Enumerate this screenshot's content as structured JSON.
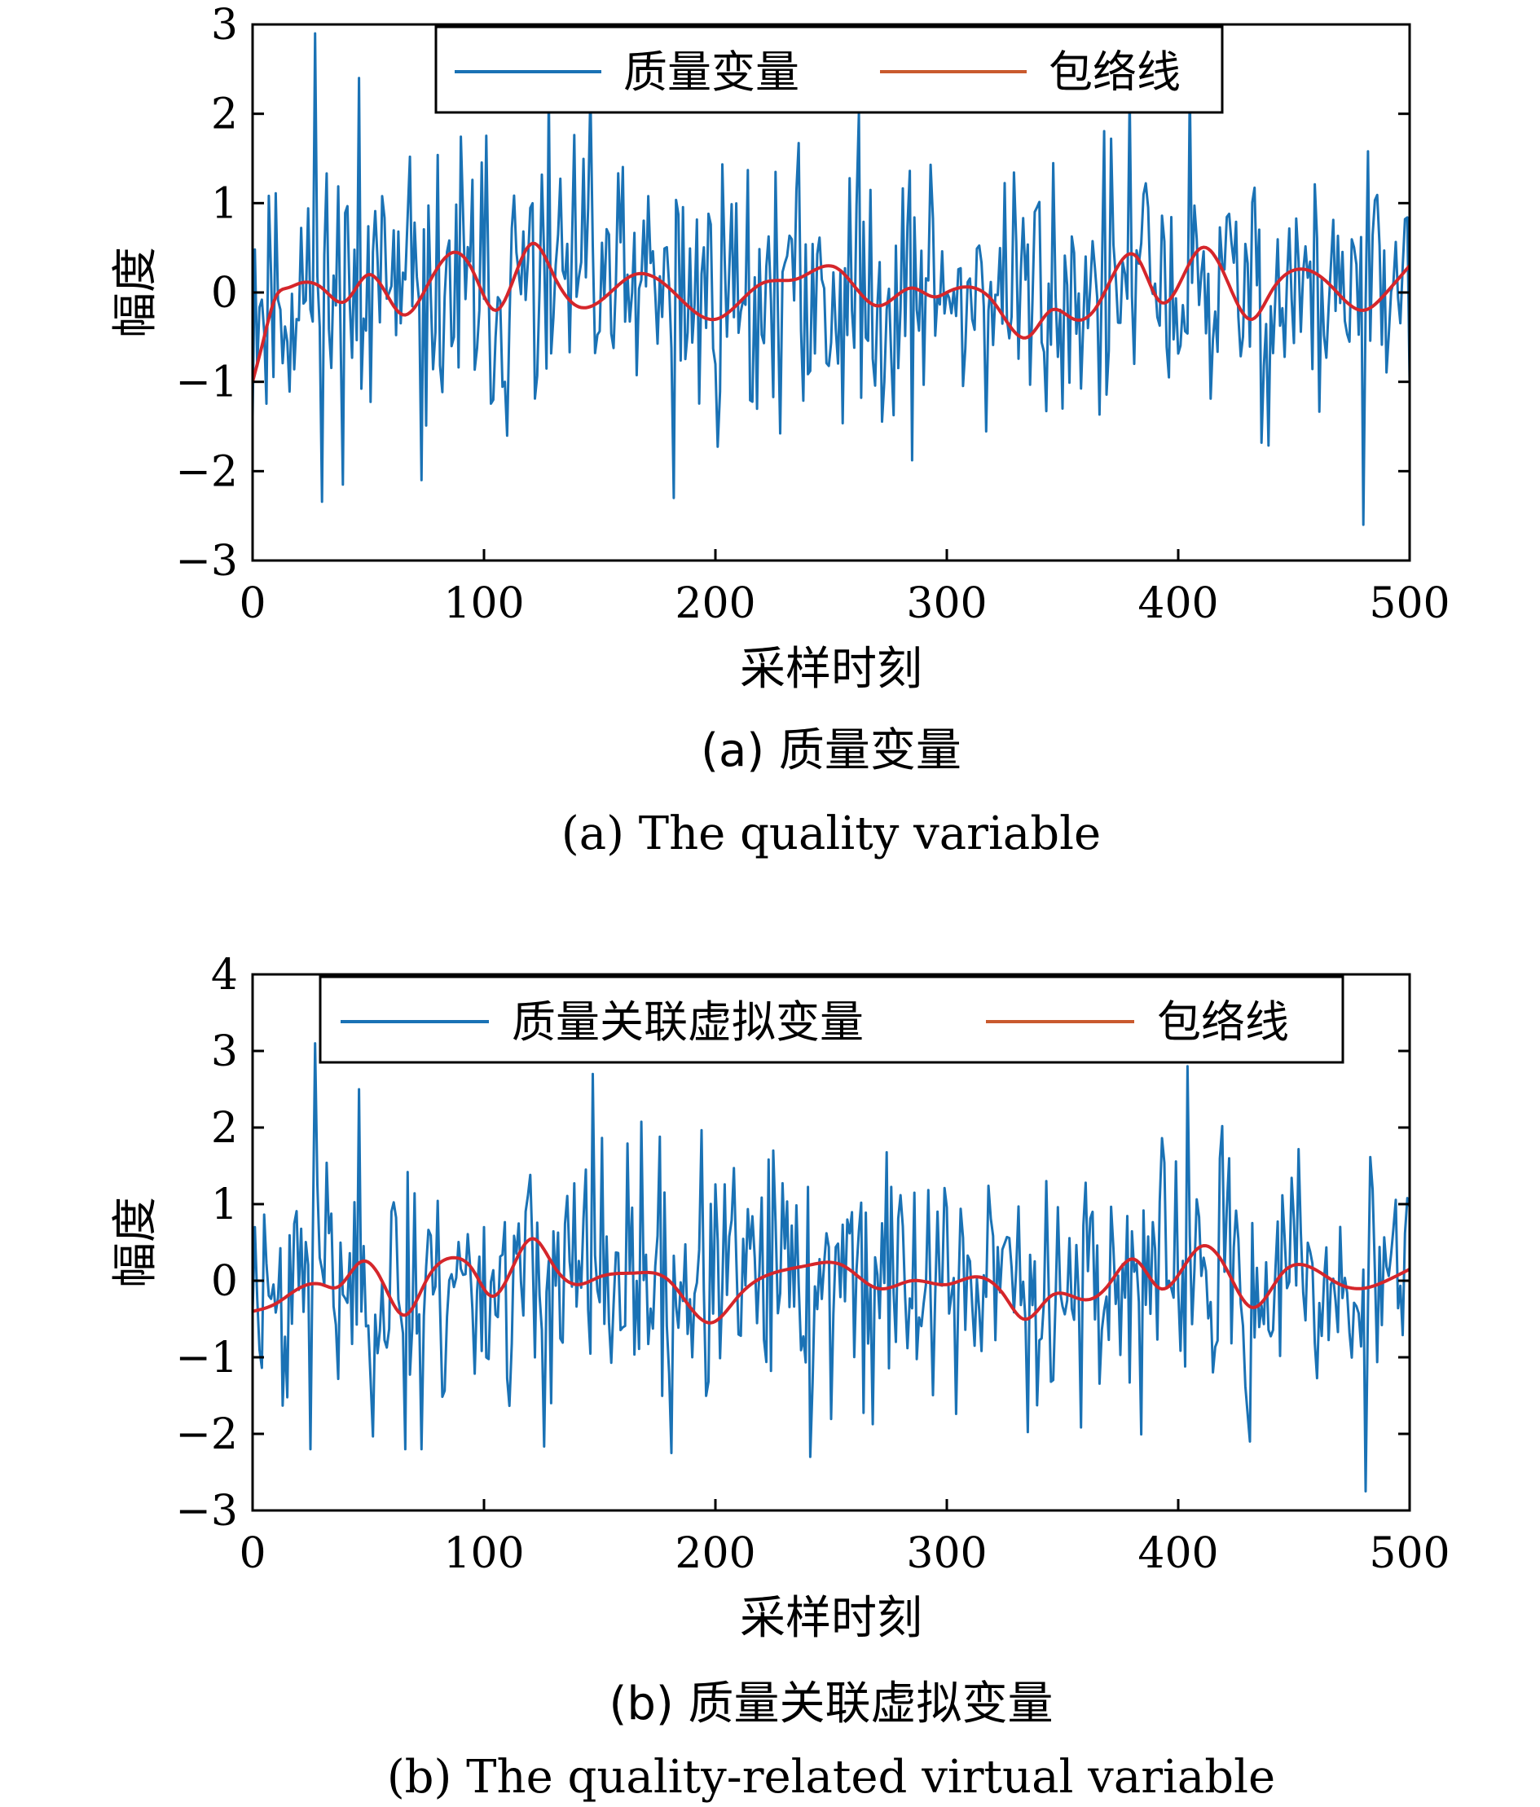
{
  "colors": {
    "signal": "#1a72b5",
    "envelope": "#d5262b",
    "legend_envelope": "#c95a2e",
    "axes": "#000000"
  },
  "chart_data": [
    {
      "type": "line",
      "ylabel": "幅度",
      "xlabel": "采样时刻",
      "xlim": [
        0,
        500
      ],
      "ylim": [
        -3,
        3
      ],
      "xticks": [
        "0",
        "100",
        "200",
        "300",
        "400",
        "500"
      ],
      "yticks": [
        "−3",
        "−2",
        "−1",
        "0",
        "1",
        "2",
        "3"
      ],
      "legend_position": "top-center",
      "caption_cn": "(a) 质量变量",
      "caption_en": "(a) The quality variable",
      "series": [
        {
          "name": "质量变量",
          "seed": 11,
          "amplitude": 0.85,
          "spikes": [
            [
              27,
              2.9
            ],
            [
              39,
              -2.15
            ],
            [
              46,
              2.4
            ],
            [
              73,
              -2.1
            ],
            [
              128,
              2.25
            ],
            [
              146,
              2.25
            ],
            [
              182,
              -2.3
            ],
            [
              379,
              2.2
            ],
            [
              405,
              2.3
            ],
            [
              480,
              -2.6
            ]
          ]
        },
        {
          "name": "包络线",
          "x": [
            0,
            5,
            10,
            15,
            20,
            30,
            40,
            50,
            65,
            75,
            87,
            95,
            105,
            115,
            121,
            130,
            140,
            150,
            165,
            180,
            200,
            220,
            235,
            252,
            270,
            285,
            295,
            300,
            312,
            320,
            335,
            345,
            355,
            365,
            382,
            392,
            410,
            420,
            432,
            440,
            450,
            465,
            480,
            490,
            500
          ],
          "y": [
            -1.0,
            -0.5,
            -0.05,
            0.05,
            0.1,
            0.05,
            -0.1,
            0.2,
            -0.25,
            0.05,
            0.45,
            0.25,
            -0.2,
            0.3,
            0.55,
            0.2,
            -0.15,
            -0.1,
            0.2,
            0.05,
            -0.3,
            0.1,
            0.15,
            0.28,
            -0.15,
            0.05,
            -0.05,
            0.0,
            0.05,
            -0.1,
            -0.5,
            -0.2,
            -0.3,
            -0.15,
            0.4,
            -0.1,
            0.5,
            0.2,
            -0.3,
            0.0,
            0.25,
            0.1,
            -0.2,
            0.0,
            0.3
          ]
        }
      ]
    },
    {
      "type": "line",
      "ylabel": "幅度",
      "xlabel": "采样时刻",
      "xlim": [
        0,
        500
      ],
      "ylim": [
        -3,
        4
      ],
      "xticks": [
        "0",
        "100",
        "200",
        "300",
        "400",
        "500"
      ],
      "yticks": [
        "−3",
        "−2",
        "−1",
        "0",
        "1",
        "2",
        "3",
        "4"
      ],
      "legend_position": "top-center",
      "caption_cn": "(b) 质量关联虚拟变量",
      "caption_en": "(b) The quality-related virtual variable",
      "series": [
        {
          "name": "质量关联虚拟变量",
          "seed": 23,
          "amplitude": 0.9,
          "spikes": [
            [
              27,
              3.1
            ],
            [
              25,
              -2.2
            ],
            [
              46,
              2.5
            ],
            [
              66,
              -2.2
            ],
            [
              73,
              -2.2
            ],
            [
              147,
              2.7
            ],
            [
              181,
              -2.25
            ],
            [
              241,
              -2.3
            ],
            [
              404,
              2.8
            ],
            [
              431,
              -2.1
            ],
            [
              481,
              -2.75
            ]
          ]
        },
        {
          "name": "包络线",
          "x": [
            0,
            10,
            20,
            30,
            37,
            47,
            55,
            66,
            75,
            87,
            95,
            103,
            112,
            121,
            130,
            140,
            150,
            165,
            180,
            198,
            210,
            225,
            240,
            255,
            270,
            285,
            300,
            312,
            325,
            333,
            345,
            360,
            370,
            381,
            392,
            410,
            420,
            432,
            445,
            455,
            470,
            480,
            490,
            500
          ],
          "y": [
            -0.4,
            -0.3,
            -0.1,
            -0.05,
            -0.08,
            0.25,
            0.05,
            -0.45,
            0.0,
            0.3,
            0.15,
            -0.2,
            0.15,
            0.55,
            0.2,
            -0.05,
            0.05,
            0.1,
            0.0,
            -0.55,
            -0.2,
            0.1,
            0.2,
            0.2,
            -0.1,
            0.0,
            -0.05,
            0.05,
            -0.2,
            -0.5,
            -0.2,
            -0.25,
            -0.05,
            0.28,
            -0.1,
            0.45,
            0.2,
            -0.35,
            0.1,
            0.2,
            -0.05,
            -0.1,
            0.0,
            0.15
          ]
        }
      ]
    }
  ]
}
